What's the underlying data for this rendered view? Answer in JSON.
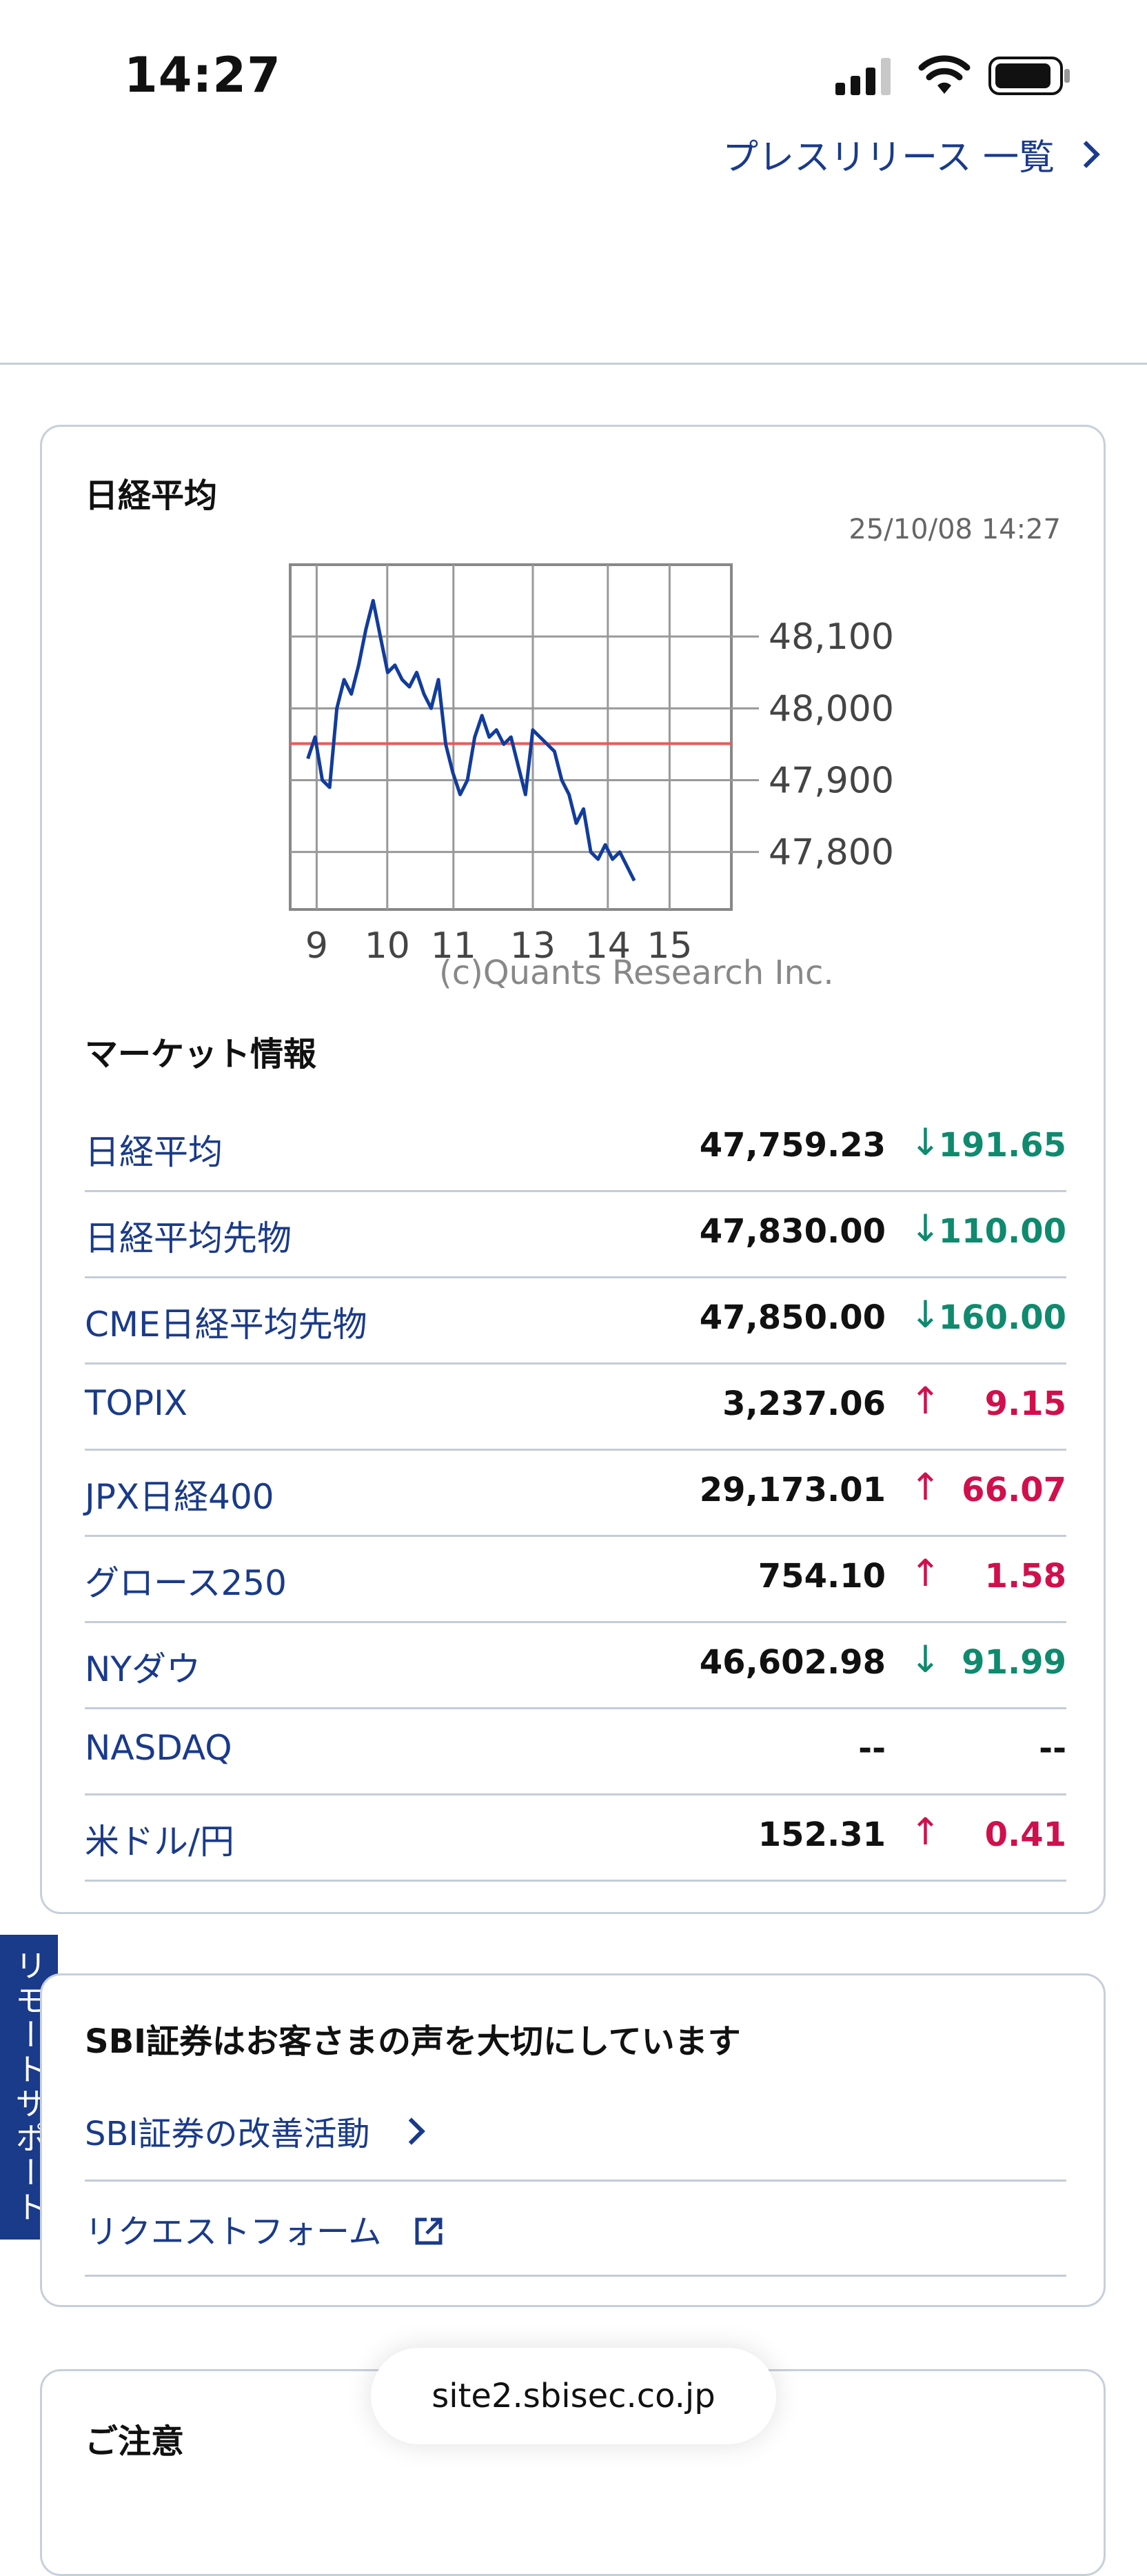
{
  "status_bar": {
    "time": "14:27",
    "icons": [
      "signal-icon",
      "wifi-icon",
      "battery-icon"
    ]
  },
  "press_release_link": "プレスリリース 一覧",
  "nikkei_card": {
    "title": "日経平均",
    "timestamp": "25/10/08 14:27",
    "copyright": "(c)Quants Research Inc."
  },
  "chart_data": {
    "type": "line",
    "title": "",
    "xlabel": "",
    "ylabel": "",
    "x_tick_labels": [
      "9",
      "10",
      "11",
      "13",
      "14",
      "15"
    ],
    "y_tick_labels": [
      "48,100",
      "48,000",
      "47,900",
      "47,800"
    ],
    "ylim": [
      47720,
      48200
    ],
    "reference_line": 47950.88,
    "grid": true,
    "series": [
      {
        "name": "",
        "color": "#123c9c",
        "values": [
          47930,
          47960,
          47900,
          47890,
          48000,
          48040,
          48020,
          48060,
          48110,
          48150,
          48100,
          48050,
          48060,
          48040,
          48030,
          48050,
          48020,
          48000,
          48040,
          47950,
          47910,
          47880,
          47900,
          47960,
          47990,
          47960,
          47970,
          47950,
          47960,
          47920,
          47880,
          47970,
          47960,
          47950,
          47940,
          47900,
          47880,
          47840,
          47860,
          47800,
          47790,
          47810,
          47790,
          47800,
          47780,
          47760
        ]
      }
    ]
  },
  "market": {
    "title": "マーケット情報",
    "colors": {
      "up": "#d0104c",
      "down": "#0f8a6e"
    },
    "rows": [
      {
        "name": "日経平均",
        "value": "47,759.23",
        "arrow": "↓",
        "change": "191.65",
        "dir": "down"
      },
      {
        "name": "日経平均先物",
        "value": "47,830.00",
        "arrow": "↓",
        "change": "110.00",
        "dir": "down"
      },
      {
        "name": "CME日経平均先物",
        "value": "47,850.00",
        "arrow": "↓",
        "change": "160.00",
        "dir": "down"
      },
      {
        "name": "TOPIX",
        "value": "3,237.06",
        "arrow": "↑",
        "change": "9.15",
        "dir": "up"
      },
      {
        "name": "JPX日経400",
        "value": "29,173.01",
        "arrow": "↑",
        "change": "66.07",
        "dir": "up"
      },
      {
        "name": "グロース250",
        "value": "754.10",
        "arrow": "↑",
        "change": "1.58",
        "dir": "up"
      },
      {
        "name": "NYダウ",
        "value": "46,602.98",
        "arrow": "↓",
        "change": "91.99",
        "dir": "down"
      },
      {
        "name": "NASDAQ",
        "value": "--",
        "arrow": "",
        "change": "--",
        "dir": "none"
      },
      {
        "name": "米ドル/円",
        "value": "152.31",
        "arrow": "↑",
        "change": "0.41",
        "dir": "up"
      }
    ]
  },
  "remote_support": "リモートサポート",
  "voice_card": {
    "title": "SBI証券はお客さまの声を大切にしています",
    "link1": "SBI証券の改善活動",
    "link2": "リクエストフォーム"
  },
  "notice_card": {
    "title": "ご注意"
  },
  "url_bar": {
    "url": "site2.sbisec.co.jp"
  }
}
